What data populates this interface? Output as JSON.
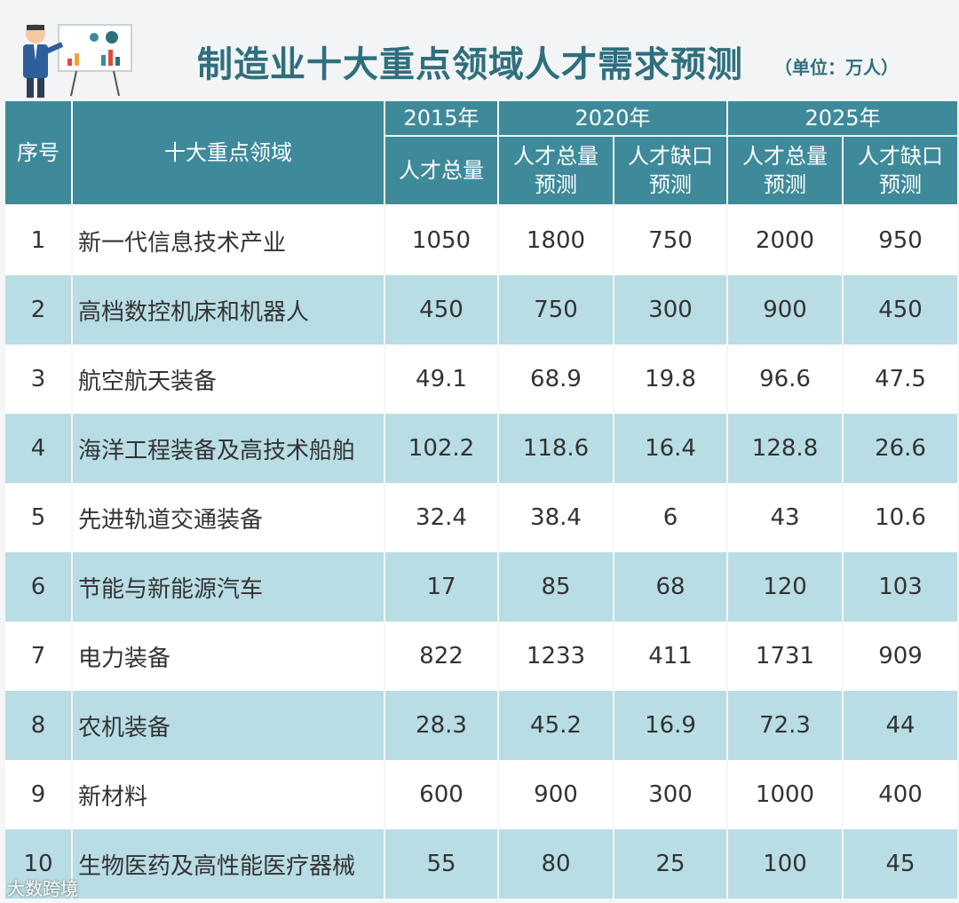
{
  "header": {
    "title": "制造业十大重点领域人才需求预测",
    "unit": "（单位：万人）"
  },
  "table": {
    "col_index": "序号",
    "col_field": "十大重点领域",
    "years": [
      "2015年",
      "2020年",
      "2025年"
    ],
    "sub_2015": "人才总量",
    "sub_total": "人才总量\n预测",
    "sub_gap": "人才缺口\n预测"
  },
  "chart_data": {
    "type": "table",
    "title": "制造业十大重点领域人才需求预测",
    "unit": "单位：万人",
    "columns": [
      "序号",
      "十大重点领域",
      "2015年 人才总量",
      "2020年 人才总量预测",
      "2020年 人才缺口预测",
      "2025年 人才总量预测",
      "2025年 人才缺口预测"
    ],
    "rows": [
      [
        "1",
        "新一代信息技术产业",
        "1050",
        "1800",
        "750",
        "2000",
        "950"
      ],
      [
        "2",
        "高档数控机床和机器人",
        "450",
        "750",
        "300",
        "900",
        "450"
      ],
      [
        "3",
        "航空航天装备",
        "49.1",
        "68.9",
        "19.8",
        "96.6",
        "47.5"
      ],
      [
        "4",
        "海洋工程装备及高技术船舶",
        "102.2",
        "118.6",
        "16.4",
        "128.8",
        "26.6"
      ],
      [
        "5",
        "先进轨道交通装备",
        "32.4",
        "38.4",
        "6",
        "43",
        "10.6"
      ],
      [
        "6",
        "节能与新能源汽车",
        "17",
        "85",
        "68",
        "120",
        "103"
      ],
      [
        "7",
        "电力装备",
        "822",
        "1233",
        "411",
        "1731",
        "909"
      ],
      [
        "8",
        "农机装备",
        "28.3",
        "45.2",
        "16.9",
        "72.3",
        "44"
      ],
      [
        "9",
        "新材料",
        "600",
        "900",
        "300",
        "1000",
        "400"
      ],
      [
        "10",
        "生物医药及高性能医疗器械",
        "55",
        "80",
        "25",
        "100",
        "45"
      ]
    ]
  },
  "colors": {
    "header_bg": "#3e8a9b",
    "row_alt": "#b9dde4",
    "title": "#2f6f7d"
  },
  "watermark": "大数跨境"
}
